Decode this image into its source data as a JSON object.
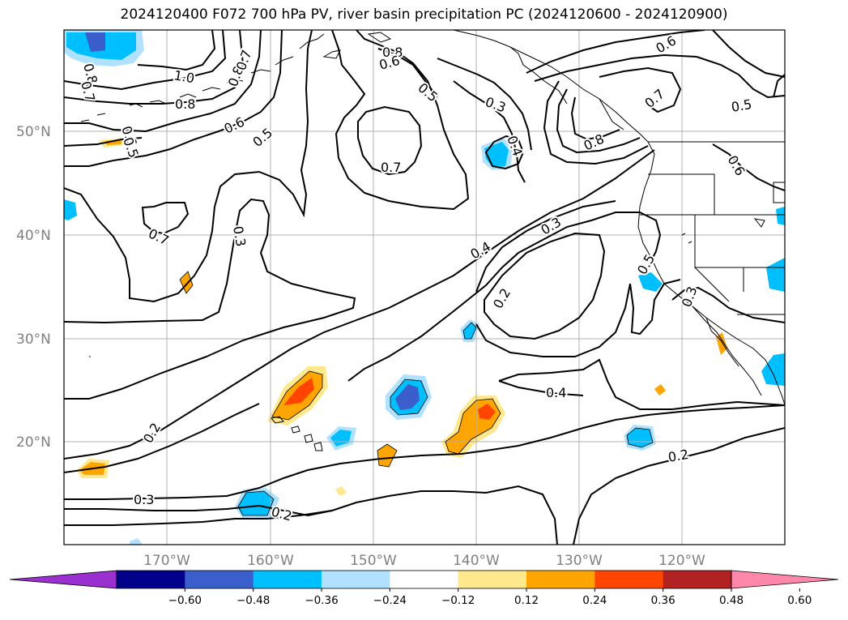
{
  "title": "2024120400 F072 700 hPa PV, river basin precipitation PC (2024120600 - 2024120900)",
  "lat_labels": [
    "50°N",
    "40°N",
    "30°N",
    "20°N"
  ],
  "lon_labels": [
    "170°W",
    "160°W",
    "150°W",
    "140°W",
    "130°W",
    "120°W"
  ],
  "contour_labels": [
    "0.8",
    "0.7",
    "0.6",
    "0.5",
    "1.0",
    "0.8",
    "0.6",
    "0.5",
    "0.8",
    "0.7",
    "0.7",
    "0.3",
    "0.8",
    "0.6",
    "0.5",
    "0.3",
    "0.4",
    "0.7",
    "0.8",
    "0.6",
    "0.7",
    "0.5",
    "0.6",
    "0.3",
    "0.4",
    "0.2",
    "0.4",
    "0.5",
    "0.3",
    "0.2",
    "0.3",
    "0.2",
    "0.2"
  ],
  "colorbar": {
    "ticks": [
      "−0.60",
      "−0.48",
      "−0.36",
      "−0.24",
      "−0.12",
      "0.12",
      "0.24",
      "0.36",
      "0.48",
      "0.60"
    ],
    "colors": [
      "#9b30d0",
      "#00008b",
      "#3a5fcd",
      "#00bfff",
      "#b0e2ff",
      "#ffffff",
      "#ffe98c",
      "#ffa500",
      "#ff4500",
      "#b22222",
      "#ff88aa"
    ]
  }
}
